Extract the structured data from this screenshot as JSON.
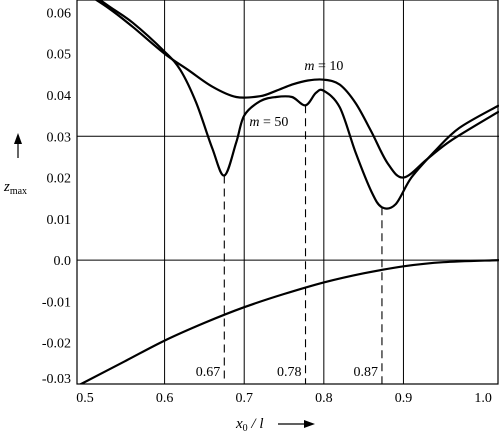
{
  "chart_data": {
    "type": "line",
    "xlabel_main": "x",
    "xlabel_sub": "0",
    "xlabel_rest": " / l",
    "ylabel_main": "z",
    "ylabel_sub": "max",
    "xlim": [
      0.49,
      1.02
    ],
    "ylim": [
      -0.03,
      0.063
    ],
    "x_ticks": [
      0.5,
      0.6,
      0.7,
      0.8,
      0.9,
      1.0
    ],
    "x_tick_labels": [
      "0.5",
      "0.6",
      "0.7",
      "0.8",
      "0.9",
      "1.0"
    ],
    "y_ticks": [
      0.06,
      0.05,
      0.04,
      0.03,
      0.02,
      0.01,
      0.0,
      -0.01,
      -0.02,
      -0.03
    ],
    "y_tick_labels": [
      "0.06",
      "0.05",
      "0.04",
      "0.03",
      "0.02",
      "0.01",
      "0.0",
      "-0.01",
      "-0.02",
      "-0.03"
    ],
    "grid_x": [
      0.6,
      0.7,
      0.8,
      0.9
    ],
    "grid_y": [
      0.03,
      0.0
    ],
    "annotations": [
      {
        "label": "0.67",
        "x": 0.675,
        "y": 0.0205
      },
      {
        "label": "0.78",
        "x": 0.777,
        "y": 0.0375
      },
      {
        "label": "0.87",
        "x": 0.873,
        "y": 0.0128
      }
    ],
    "series": [
      {
        "name": "m = 10",
        "label_parts": [
          "m",
          " = 10"
        ],
        "label_at": [
          0.8,
          0.046
        ],
        "x": [
          0.49,
          0.53,
          0.56,
          0.6,
          0.63,
          0.66,
          0.69,
          0.72,
          0.74,
          0.76,
          0.78,
          0.8,
          0.82,
          0.84,
          0.86,
          0.88,
          0.9,
          0.93,
          0.96,
          1.02
        ],
        "y": [
          0.066,
          0.061,
          0.0565,
          0.05,
          0.046,
          0.042,
          0.0395,
          0.0397,
          0.041,
          0.0425,
          0.0435,
          0.0437,
          0.0425,
          0.038,
          0.031,
          0.0235,
          0.02,
          0.0245,
          0.029,
          0.036
        ]
      },
      {
        "name": "m = 50",
        "label_parts": [
          "m",
          " = 50"
        ],
        "label_at": [
          0.731,
          0.0325
        ],
        "x": [
          0.49,
          0.53,
          0.56,
          0.6,
          0.62,
          0.64,
          0.66,
          0.675,
          0.69,
          0.7,
          0.72,
          0.74,
          0.76,
          0.777,
          0.79,
          0.8,
          0.82,
          0.84,
          0.86,
          0.873,
          0.89,
          0.91,
          0.94,
          0.97,
          1.02
        ],
        "y": [
          0.067,
          0.0615,
          0.0575,
          0.0505,
          0.046,
          0.038,
          0.027,
          0.0205,
          0.0285,
          0.035,
          0.0385,
          0.0395,
          0.0395,
          0.0375,
          0.0405,
          0.041,
          0.037,
          0.026,
          0.0165,
          0.0128,
          0.0135,
          0.02,
          0.0265,
          0.032,
          0.0375
        ]
      },
      {
        "name": "lower",
        "label_parts": [],
        "x": [
          0.49,
          0.55,
          0.6,
          0.65,
          0.7,
          0.75,
          0.8,
          0.85,
          0.9,
          0.95,
          1.02
        ],
        "y": [
          -0.0305,
          -0.0245,
          -0.0195,
          -0.0152,
          -0.0114,
          -0.0082,
          -0.0054,
          -0.0032,
          -0.0015,
          -0.0005,
          0.0
        ]
      }
    ]
  }
}
